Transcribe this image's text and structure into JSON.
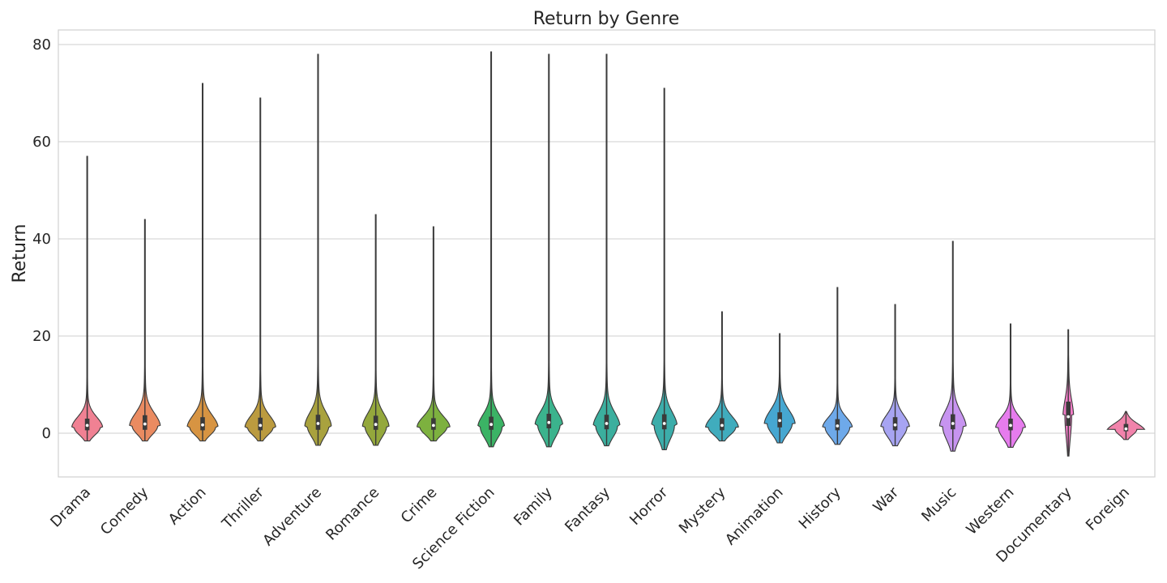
{
  "chart_data": {
    "type": "violin",
    "title": "Return by Genre",
    "xlabel": "",
    "ylabel": "Return",
    "ylim": [
      -9,
      83
    ],
    "yticks": [
      0,
      20,
      40,
      60,
      80
    ],
    "grid": "horizontal",
    "series": [
      {
        "name": "Drama",
        "color": "#f08193",
        "min": -1.6,
        "max": 57,
        "q1": 0.6,
        "median": 1.6,
        "q3": 3.0,
        "mode": 1.2,
        "width": 0.58,
        "tail": 0.18,
        "secondary": []
      },
      {
        "name": "Comedy",
        "color": "#ea8b61",
        "min": -1.6,
        "max": 44,
        "q1": 0.7,
        "median": 1.9,
        "q3": 3.7,
        "mode": 1.5,
        "width": 0.58,
        "tail": 0.2,
        "secondary": []
      },
      {
        "name": "Action",
        "color": "#d79442",
        "min": -1.6,
        "max": 72,
        "q1": 0.6,
        "median": 1.7,
        "q3": 3.3,
        "mode": 1.2,
        "width": 0.58,
        "tail": 0.2,
        "secondary": []
      },
      {
        "name": "Thriller",
        "color": "#bb9b3f",
        "min": -1.6,
        "max": 69,
        "q1": 0.6,
        "median": 1.6,
        "q3": 3.2,
        "mode": 1.2,
        "width": 0.58,
        "tail": 0.2,
        "secondary": []
      },
      {
        "name": "Adventure",
        "color": "#a9a23e",
        "min": -2.5,
        "max": 78,
        "q1": 0.7,
        "median": 2.0,
        "q3": 3.8,
        "mode": 1.5,
        "width": 0.5,
        "tail": 0.22,
        "secondary": []
      },
      {
        "name": "Romance",
        "color": "#94a83c",
        "min": -2.5,
        "max": 45,
        "q1": 0.7,
        "median": 1.8,
        "q3": 3.6,
        "mode": 1.4,
        "width": 0.5,
        "tail": 0.22,
        "secondary": []
      },
      {
        "name": "Crime",
        "color": "#7db13f",
        "min": -1.6,
        "max": 42.5,
        "q1": 0.7,
        "median": 1.6,
        "q3": 3.1,
        "mode": 1.3,
        "width": 0.62,
        "tail": 0.2,
        "secondary": []
      },
      {
        "name": "Science Fiction",
        "color": "#3bb365",
        "min": -2.8,
        "max": 78.5,
        "q1": 0.7,
        "median": 1.8,
        "q3": 3.4,
        "mode": 1.3,
        "width": 0.5,
        "tail": 0.22,
        "secondary": []
      },
      {
        "name": "Family",
        "color": "#3bb38d",
        "min": -2.8,
        "max": 78,
        "q1": 1.0,
        "median": 2.2,
        "q3": 4.0,
        "mode": 1.8,
        "width": 0.52,
        "tail": 0.22,
        "secondary": []
      },
      {
        "name": "Fantasy",
        "color": "#3baf9e",
        "min": -2.6,
        "max": 78,
        "q1": 0.8,
        "median": 2.0,
        "q3": 3.8,
        "mode": 1.5,
        "width": 0.5,
        "tail": 0.22,
        "secondary": []
      },
      {
        "name": "Horror",
        "color": "#3cadaa",
        "min": -3.4,
        "max": 71,
        "q1": 0.8,
        "median": 2.0,
        "q3": 3.9,
        "mode": 1.6,
        "width": 0.48,
        "tail": 0.26,
        "secondary": []
      },
      {
        "name": "Mystery",
        "color": "#40acbd",
        "min": -1.6,
        "max": 25,
        "q1": 0.6,
        "median": 1.6,
        "q3": 3.1,
        "mode": 1.2,
        "width": 0.62,
        "tail": 0.2,
        "secondary": []
      },
      {
        "name": "Animation",
        "color": "#46a7d1",
        "min": -2.0,
        "max": 20.5,
        "q1": 1.2,
        "median": 2.6,
        "q3": 4.3,
        "mode": 2.0,
        "width": 0.58,
        "tail": 0.22,
        "secondary": []
      },
      {
        "name": "History",
        "color": "#6ea9ea",
        "min": -2.3,
        "max": 30,
        "q1": 0.6,
        "median": 1.5,
        "q3": 2.9,
        "mode": 1.2,
        "width": 0.56,
        "tail": 0.2,
        "secondary": []
      },
      {
        "name": "War",
        "color": "#a7a4f2",
        "min": -2.6,
        "max": 26.5,
        "q1": 0.6,
        "median": 1.7,
        "q3": 3.3,
        "mode": 1.3,
        "width": 0.54,
        "tail": 0.2,
        "secondary": []
      },
      {
        "name": "Music",
        "color": "#c794f0",
        "min": -3.7,
        "max": 39.5,
        "q1": 0.8,
        "median": 2.0,
        "q3": 3.9,
        "mode": 1.5,
        "width": 0.5,
        "tail": 0.28,
        "secondary": []
      },
      {
        "name": "Western",
        "color": "#e67ced",
        "min": -2.9,
        "max": 22.5,
        "q1": 0.6,
        "median": 1.6,
        "q3": 3.0,
        "mode": 1.2,
        "width": 0.56,
        "tail": 0.2,
        "secondary": []
      },
      {
        "name": "Documentary",
        "color": "#f17cc6",
        "min": -4.7,
        "max": 21.3,
        "q1": 1.5,
        "median": 3.4,
        "q3": 6.5,
        "mode": 3.8,
        "width": 0.2,
        "tail": 0.55,
        "secondary": [
          {
            "mode": 14.5,
            "width": 0.06,
            "sigma": 2.8
          }
        ]
      },
      {
        "name": "Foreign",
        "color": "#f183ab",
        "min": -1.3,
        "max": 4.5,
        "q1": 0.4,
        "median": 0.9,
        "q3": 1.9,
        "mode": 0.8,
        "width": 0.7,
        "tail": 0.7,
        "secondary": []
      }
    ]
  }
}
